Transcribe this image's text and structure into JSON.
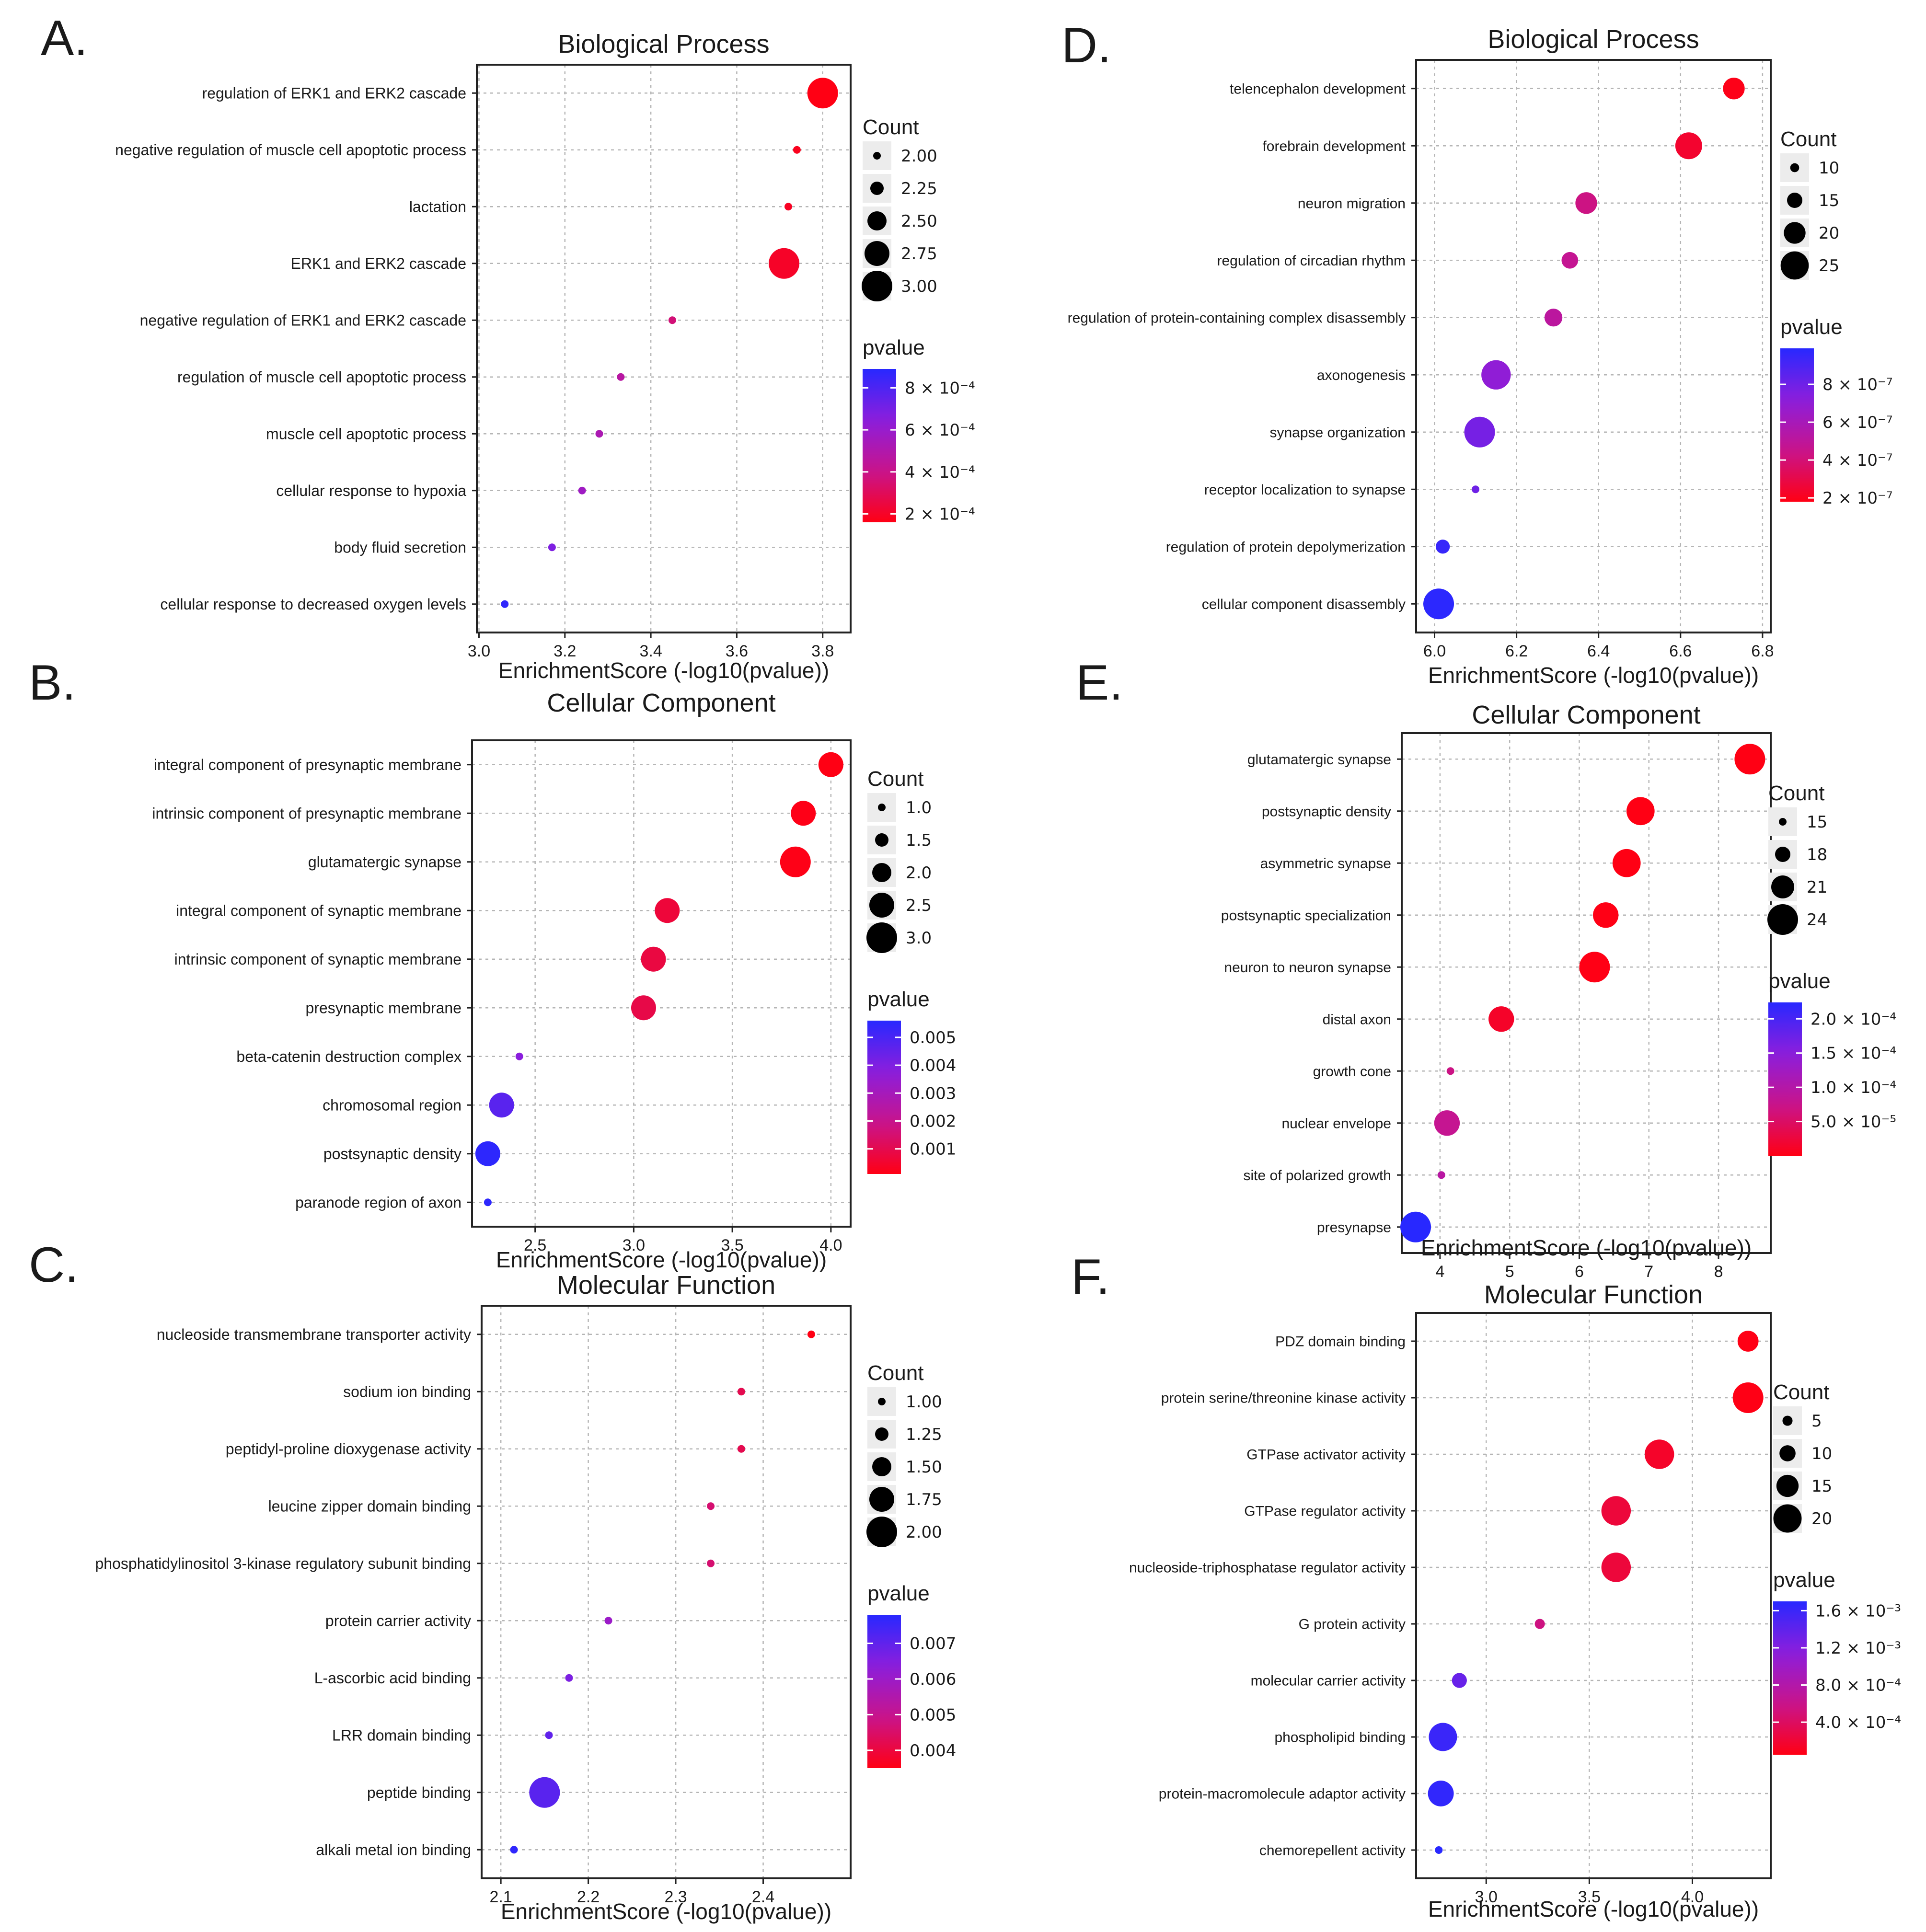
{
  "chart_data": [
    {
      "letter": "A.",
      "type": "scatter",
      "title": "Biological Process",
      "xlabel": "EnrichmentScore (-log10(pvalue))",
      "ylabel": "",
      "xlim": [
        2.995,
        3.865
      ],
      "xticks": [
        3.0,
        3.2,
        3.4,
        3.6,
        3.8
      ],
      "xtick_labels": [
        "3.0",
        "3.2",
        "3.4",
        "3.6",
        "3.8"
      ],
      "grid": true,
      "terms": [
        {
          "label": "regulation of ERK1 and ERK2 cascade",
          "x": 3.8,
          "count": 3.0,
          "pvalue": 0.00016
        },
        {
          "label": "negative regulation of muscle cell apoptotic process",
          "x": 3.74,
          "count": 2.0,
          "pvalue": 0.00018
        },
        {
          "label": "lactation",
          "x": 3.72,
          "count": 2.0,
          "pvalue": 0.00019
        },
        {
          "label": "ERK1 and ERK2 cascade",
          "x": 3.71,
          "count": 3.0,
          "pvalue": 0.0002
        },
        {
          "label": "negative regulation of ERK1 and ERK2 cascade",
          "x": 3.45,
          "count": 2.0,
          "pvalue": 0.00036
        },
        {
          "label": "regulation of muscle cell apoptotic process",
          "x": 3.33,
          "count": 2.0,
          "pvalue": 0.00047
        },
        {
          "label": "muscle cell apoptotic process",
          "x": 3.28,
          "count": 2.0,
          "pvalue": 0.00052
        },
        {
          "label": "cellular response to hypoxia",
          "x": 3.24,
          "count": 2.0,
          "pvalue": 0.00057
        },
        {
          "label": "body fluid secretion",
          "x": 3.17,
          "count": 2.0,
          "pvalue": 0.00068
        },
        {
          "label": "cellular response to decreased oxygen levels",
          "x": 3.06,
          "count": 2.0,
          "pvalue": 0.00087
        }
      ],
      "size_legend": {
        "title": "Count",
        "values": [
          2.0,
          2.25,
          2.5,
          2.75,
          3.0
        ],
        "labels": [
          "2.00",
          "2.25",
          "2.50",
          "2.75",
          "3.00"
        ]
      },
      "color_legend": {
        "title": "pvalue",
        "range": [
          0.00016,
          0.00089
        ],
        "ticks": [
          0.0008,
          0.0006,
          0.0004,
          0.0002
        ],
        "labels": [
          "8 × 10⁻⁴",
          "6 × 10⁻⁴",
          "4 × 10⁻⁴",
          "2 × 10⁻⁴"
        ]
      }
    },
    {
      "letter": "B.",
      "type": "scatter",
      "title": "Cellular Component",
      "xlabel": "EnrichmentScore (-log10(pvalue))",
      "ylabel": "",
      "xlim": [
        2.18,
        4.1
      ],
      "xticks": [
        2.5,
        3.0,
        3.5,
        4.0
      ],
      "xtick_labels": [
        "2.5",
        "3.0",
        "3.5",
        "4.0"
      ],
      "grid": true,
      "terms": [
        {
          "label": "integral component of presynaptic membrane",
          "x": 4.0,
          "count": 2.5,
          "pvalue": 0.0001
        },
        {
          "label": "intrinsic component of presynaptic membrane",
          "x": 3.86,
          "count": 2.5,
          "pvalue": 0.00014
        },
        {
          "label": "glutamatergic synapse",
          "x": 3.82,
          "count": 3.0,
          "pvalue": 0.00015
        },
        {
          "label": "integral component of synaptic membrane",
          "x": 3.17,
          "count": 2.5,
          "pvalue": 0.00068
        },
        {
          "label": "intrinsic component of synaptic membrane",
          "x": 3.1,
          "count": 2.5,
          "pvalue": 0.00079
        },
        {
          "label": "presynaptic membrane",
          "x": 3.05,
          "count": 2.5,
          "pvalue": 0.00089
        },
        {
          "label": "beta-catenin destruction complex",
          "x": 2.42,
          "count": 1.0,
          "pvalue": 0.0038
        },
        {
          "label": "chromosomal region",
          "x": 2.33,
          "count": 2.5,
          "pvalue": 0.0047
        },
        {
          "label": "postsynaptic density",
          "x": 2.26,
          "count": 2.5,
          "pvalue": 0.0055
        },
        {
          "label": "paranode region of axon",
          "x": 2.26,
          "count": 1.0,
          "pvalue": 0.0055
        }
      ],
      "size_legend": {
        "title": "Count",
        "values": [
          1.0,
          1.5,
          2.0,
          2.5,
          3.0
        ],
        "labels": [
          "1.0",
          "1.5",
          "2.0",
          "2.5",
          "3.0"
        ]
      },
      "color_legend": {
        "title": "pvalue",
        "range": [
          0.0001,
          0.0056
        ],
        "ticks": [
          0.005,
          0.004,
          0.003,
          0.002,
          0.001
        ],
        "labels": [
          "0.005",
          "0.004",
          "0.003",
          "0.002",
          "0.001"
        ]
      }
    },
    {
      "letter": "C.",
      "type": "scatter",
      "title": "Molecular Function",
      "xlabel": "EnrichmentScore (-log10(pvalue))",
      "ylabel": "",
      "xlim": [
        2.078,
        2.5
      ],
      "xticks": [
        2.1,
        2.2,
        2.3,
        2.4
      ],
      "xtick_labels": [
        "2.1",
        "2.2",
        "2.3",
        "2.4"
      ],
      "grid": true,
      "terms": [
        {
          "label": "nucleoside transmembrane transporter activity",
          "x": 2.455,
          "count": 1.0,
          "pvalue": 0.0035
        },
        {
          "label": "sodium ion binding",
          "x": 2.375,
          "count": 1.0,
          "pvalue": 0.0042
        },
        {
          "label": "peptidyl-proline dioxygenase activity",
          "x": 2.375,
          "count": 1.0,
          "pvalue": 0.0042
        },
        {
          "label": "leucine zipper domain binding",
          "x": 2.34,
          "count": 1.0,
          "pvalue": 0.0046
        },
        {
          "label": "phosphatidylinositol 3-kinase regulatory subunit binding",
          "x": 2.34,
          "count": 1.0,
          "pvalue": 0.0046
        },
        {
          "label": "protein carrier activity",
          "x": 2.223,
          "count": 1.0,
          "pvalue": 0.006
        },
        {
          "label": "L-ascorbic acid binding",
          "x": 2.178,
          "count": 1.0,
          "pvalue": 0.0066
        },
        {
          "label": "LRR domain binding",
          "x": 2.155,
          "count": 1.0,
          "pvalue": 0.007
        },
        {
          "label": "peptide binding",
          "x": 2.15,
          "count": 2.0,
          "pvalue": 0.0071
        },
        {
          "label": "alkali metal ion binding",
          "x": 2.115,
          "count": 1.0,
          "pvalue": 0.0077
        }
      ],
      "size_legend": {
        "title": "Count",
        "values": [
          1.0,
          1.25,
          1.5,
          1.75,
          2.0
        ],
        "labels": [
          "1.00",
          "1.25",
          "1.50",
          "1.75",
          "2.00"
        ]
      },
      "color_legend": {
        "title": "pvalue",
        "range": [
          0.0035,
          0.0078
        ],
        "ticks": [
          0.007,
          0.006,
          0.005,
          0.004
        ],
        "labels": [
          "0.007",
          "0.006",
          "0.005",
          "0.004"
        ]
      }
    },
    {
      "letter": "D.",
      "type": "scatter",
      "title": "Biological Process",
      "xlabel": "EnrichmentScore (-log10(pvalue))",
      "ylabel": "",
      "xlim": [
        5.955,
        6.82
      ],
      "xticks": [
        6.0,
        6.2,
        6.4,
        6.6,
        6.8
      ],
      "xtick_labels": [
        "6.0",
        "6.2",
        "6.4",
        "6.6",
        "6.8"
      ],
      "grid": true,
      "terms": [
        {
          "label": "telencephalon development",
          "x": 6.73,
          "count": 20,
          "pvalue": 1.9e-07
        },
        {
          "label": "forebrain development",
          "x": 6.62,
          "count": 24,
          "pvalue": 2.4e-07
        },
        {
          "label": "neuron migration",
          "x": 6.37,
          "count": 20,
          "pvalue": 4.3e-07
        },
        {
          "label": "regulation of circadian rhythm",
          "x": 6.33,
          "count": 16,
          "pvalue": 4.7e-07
        },
        {
          "label": "regulation of protein-containing complex disassembly",
          "x": 6.29,
          "count": 17,
          "pvalue": 5.1e-07
        },
        {
          "label": "axonogenesis",
          "x": 6.15,
          "count": 26,
          "pvalue": 7e-07
        },
        {
          "label": "synapse organization",
          "x": 6.11,
          "count": 27,
          "pvalue": 7.8e-07
        },
        {
          "label": "receptor localization to synapse",
          "x": 6.1,
          "count": 9,
          "pvalue": 8e-07
        },
        {
          "label": "regulation of protein depolymerization",
          "x": 6.02,
          "count": 14,
          "pvalue": 9.5e-07
        },
        {
          "label": "cellular component disassembly",
          "x": 6.01,
          "count": 27,
          "pvalue": 9.8e-07
        }
      ],
      "size_legend": {
        "title": "Count",
        "values": [
          10,
          15,
          20,
          25
        ],
        "labels": [
          "10",
          "15",
          "20",
          "25"
        ]
      },
      "color_legend": {
        "title": "pvalue",
        "range": [
          1.8e-07,
          9.9e-07
        ],
        "ticks": [
          8e-07,
          6e-07,
          4e-07,
          2e-07
        ],
        "labels": [
          "8 × 10⁻⁷",
          "6 × 10⁻⁷",
          "4 × 10⁻⁷",
          "2 × 10⁻⁷"
        ]
      }
    },
    {
      "letter": "E.",
      "type": "scatter",
      "title": "Cellular Component",
      "xlabel": "EnrichmentScore (-log10(pvalue))",
      "ylabel": "",
      "xlim": [
        3.45,
        8.75
      ],
      "xticks": [
        4,
        5,
        6,
        7,
        8
      ],
      "xtick_labels": [
        "4",
        "5",
        "6",
        "7",
        "8"
      ],
      "grid": true,
      "terms": [
        {
          "label": "glutamatergic synapse",
          "x": 8.45,
          "count": 24,
          "pvalue": 3.5e-09
        },
        {
          "label": "postsynaptic density",
          "x": 6.88,
          "count": 23,
          "pvalue": 1.3e-07
        },
        {
          "label": "asymmetric synapse",
          "x": 6.68,
          "count": 23,
          "pvalue": 2.1e-07
        },
        {
          "label": "postsynaptic specialization",
          "x": 6.38,
          "count": 22,
          "pvalue": 4.2e-07
        },
        {
          "label": "neuron to neuron synapse",
          "x": 6.22,
          "count": 24,
          "pvalue": 6e-07
        },
        {
          "label": "distal axon",
          "x": 4.88,
          "count": 22,
          "pvalue": 1.3e-05
        },
        {
          "label": "growth cone",
          "x": 4.15,
          "count": 15,
          "pvalue": 7e-05
        },
        {
          "label": "nuclear envelope",
          "x": 4.1,
          "count": 22,
          "pvalue": 7.9e-05
        },
        {
          "label": "site of polarized growth",
          "x": 4.02,
          "count": 15,
          "pvalue": 9.5e-05
        },
        {
          "label": "presynapse",
          "x": 3.65,
          "count": 24,
          "pvalue": 0.000224
        }
      ],
      "size_legend": {
        "title": "Count",
        "values": [
          15,
          18,
          21,
          24
        ],
        "labels": [
          "15",
          "18",
          "21",
          "24"
        ]
      },
      "color_legend": {
        "title": "pvalue",
        "range": [
          3.5e-09,
          0.000224
        ],
        "ticks": [
          0.0002,
          0.00015,
          0.0001,
          5e-05
        ],
        "labels": [
          "2.0 × 10⁻⁴",
          "1.5 × 10⁻⁴",
          "1.0 × 10⁻⁴",
          "5.0 × 10⁻⁵"
        ]
      }
    },
    {
      "letter": "F.",
      "type": "scatter",
      "title": "Molecular Function",
      "xlabel": "EnrichmentScore (-log10(pvalue))",
      "ylabel": "",
      "xlim": [
        2.66,
        4.38
      ],
      "xticks": [
        3.0,
        3.5,
        4.0
      ],
      "xtick_labels": [
        "3.0",
        "3.5",
        "4.0"
      ],
      "grid": true,
      "terms": [
        {
          "label": "PDZ domain binding",
          "x": 4.27,
          "count": 14,
          "pvalue": 5.4e-05
        },
        {
          "label": "protein serine/threonine kinase activity",
          "x": 4.27,
          "count": 22,
          "pvalue": 5.4e-05
        },
        {
          "label": "GTPase activator activity",
          "x": 3.84,
          "count": 21,
          "pvalue": 0.00015
        },
        {
          "label": "GTPase regulator activity",
          "x": 3.63,
          "count": 21,
          "pvalue": 0.00023
        },
        {
          "label": "nucleoside-triphosphatase regulator activity",
          "x": 3.63,
          "count": 21,
          "pvalue": 0.00023
        },
        {
          "label": "G protein activity",
          "x": 3.26,
          "count": 5,
          "pvalue": 0.00055
        },
        {
          "label": "molecular carrier activity",
          "x": 2.87,
          "count": 9,
          "pvalue": 0.00135
        },
        {
          "label": "phospholipid binding",
          "x": 2.79,
          "count": 20,
          "pvalue": 0.0016
        },
        {
          "label": "protein-macromolecule adaptor activity",
          "x": 2.78,
          "count": 18,
          "pvalue": 0.00165
        },
        {
          "label": "chemorepellent activity",
          "x": 2.77,
          "count": 3,
          "pvalue": 0.0017
        }
      ],
      "size_legend": {
        "title": "Count",
        "values": [
          5,
          10,
          15,
          20
        ],
        "labels": [
          "5",
          "10",
          "15",
          "20"
        ]
      },
      "color_legend": {
        "title": "pvalue",
        "range": [
          5e-05,
          0.0017
        ],
        "ticks": [
          0.0016,
          0.0012,
          0.0008,
          0.0004
        ],
        "labels": [
          "1.6 × 10⁻³",
          "1.2 × 10⁻³",
          "8.0 × 10⁻⁴",
          "4.0 × 10⁻⁴"
        ]
      }
    }
  ]
}
